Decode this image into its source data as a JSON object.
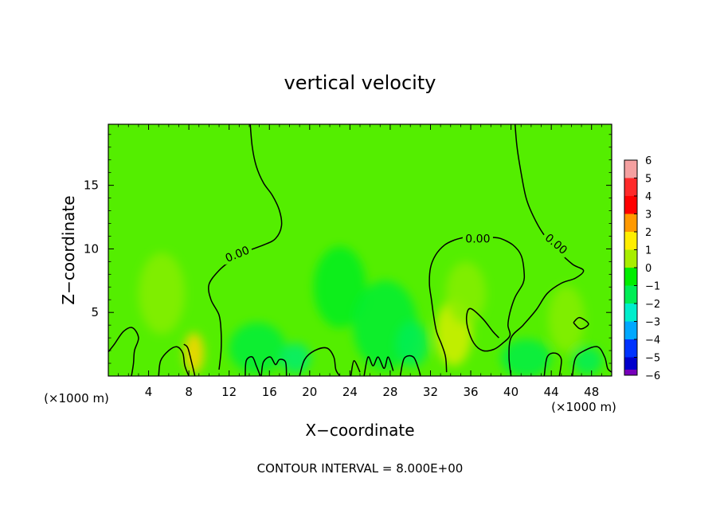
{
  "chart_data": {
    "type": "heatmap",
    "title": "vertical velocity",
    "xlabel": "X−coordinate",
    "ylabel": "Z−coordinate",
    "x_unit": "(×1000 m)",
    "x_unit_right": "(×1000 m)",
    "footer": "CONTOUR INTERVAL = 8.000E+00",
    "xlim": [
      0,
      50
    ],
    "ylim": [
      0,
      19.8
    ],
    "x_ticks": [
      4,
      8,
      12,
      16,
      20,
      24,
      28,
      32,
      36,
      40,
      44,
      48
    ],
    "x_tick_labels": [
      "4",
      "8",
      "12",
      "16",
      "20",
      "24",
      "28",
      "32",
      "36",
      "40",
      "44",
      "48"
    ],
    "y_ticks": [
      5,
      10,
      15
    ],
    "y_tick_labels": [
      "5",
      "10",
      "15"
    ],
    "background_value": 0.5,
    "colorbar": {
      "levels": [
        6,
        5,
        4,
        3,
        2,
        1,
        0,
        -1,
        -2,
        -3,
        -4,
        -5,
        -6
      ],
      "labels": [
        "6",
        "5",
        "4",
        "3",
        "2",
        "1",
        "0",
        "−1",
        "−2",
        "−3",
        "−4",
        "−5",
        "−6"
      ],
      "colors": [
        "#f4a0a0",
        "#ff2a2a",
        "#ff0000",
        "#ff9900",
        "#ffee00",
        "#a8ee00",
        "#00ee00",
        "#00ee55",
        "#00eecc",
        "#00a8ff",
        "#0033ff",
        "#0000cc",
        "#7700bb"
      ]
    },
    "contour_labels": [
      {
        "text": "0.00",
        "x": 12.8,
        "z": 9.6,
        "angle": -22
      },
      {
        "text": "0.00",
        "x": 36.7,
        "z": 10.8,
        "angle": 0
      },
      {
        "text": "0.00",
        "x": 44.5,
        "z": 10.4,
        "angle": 40
      }
    ],
    "contour_lines": [
      [
        [
          14.1,
          19.8
        ],
        [
          14.3,
          18
        ],
        [
          14.7,
          16.5
        ],
        [
          15.4,
          15.2
        ],
        [
          16.3,
          14.2
        ],
        [
          17,
          13
        ],
        [
          17.2,
          11.8
        ],
        [
          16.6,
          10.8
        ],
        [
          15.4,
          10.3
        ],
        [
          13.4,
          9.7
        ],
        [
          12.2,
          9.1
        ],
        [
          11,
          8.3
        ],
        [
          10,
          7.2
        ],
        [
          10.2,
          6
        ],
        [
          11,
          4.8
        ],
        [
          11.2,
          3.5
        ],
        [
          11.2,
          2
        ],
        [
          11,
          0.5
        ]
      ],
      [
        [
          40.4,
          19.8
        ],
        [
          40.6,
          18
        ],
        [
          41,
          16
        ],
        [
          41.5,
          14
        ],
        [
          42.2,
          12.6
        ],
        [
          43.2,
          11.2
        ],
        [
          44.6,
          9.9
        ],
        [
          46.1,
          8.8
        ],
        [
          47.2,
          8.3
        ],
        [
          46.4,
          7.7
        ],
        [
          45,
          7.3
        ],
        [
          43.6,
          6.5
        ],
        [
          42.5,
          5.2
        ],
        [
          41.2,
          4
        ],
        [
          40,
          3
        ],
        [
          39.8,
          1.5
        ],
        [
          40,
          0
        ]
      ],
      [
        [
          38.2,
          10.9
        ],
        [
          39,
          10.8
        ],
        [
          40.2,
          10.3
        ],
        [
          41,
          9.5
        ],
        [
          41.3,
          8.2
        ],
        [
          41.2,
          7.3
        ],
        [
          40.4,
          6.2
        ],
        [
          39.9,
          5
        ],
        [
          39.7,
          4
        ],
        [
          39.9,
          3.2
        ],
        [
          39.2,
          2.6
        ],
        [
          38.3,
          2.1
        ],
        [
          37.2,
          2
        ],
        [
          36.3,
          2.6
        ],
        [
          35.7,
          3.8
        ],
        [
          35.6,
          4.8
        ],
        [
          36,
          5.3
        ],
        [
          37.2,
          4.5
        ],
        [
          38.2,
          3.5
        ],
        [
          38.8,
          3
        ]
      ],
      [
        [
          35.3,
          10.9
        ],
        [
          34.4,
          10.7
        ],
        [
          33.4,
          10.3
        ],
        [
          32.5,
          9.5
        ],
        [
          32,
          8.5
        ],
        [
          31.9,
          7.2
        ],
        [
          32.1,
          6
        ],
        [
          32.3,
          4.8
        ],
        [
          32.6,
          3.5
        ],
        [
          33.1,
          2.5
        ],
        [
          33.5,
          1.5
        ],
        [
          33.6,
          0.3
        ]
      ],
      [
        [
          0,
          1.9
        ],
        [
          0.6,
          2.5
        ],
        [
          1.5,
          3.5
        ],
        [
          2.4,
          3.8
        ],
        [
          3,
          3
        ],
        [
          2.6,
          2
        ],
        [
          2.5,
          1
        ],
        [
          2.3,
          0
        ]
      ],
      [
        [
          5,
          0
        ],
        [
          5.2,
          1.2
        ],
        [
          6,
          2
        ],
        [
          6.8,
          2.3
        ],
        [
          7.4,
          1.8
        ],
        [
          7.6,
          0.8
        ],
        [
          8,
          0
        ]
      ],
      [
        [
          8.6,
          0
        ],
        [
          8.3,
          1
        ],
        [
          7.9,
          2.2
        ],
        [
          7.5,
          2.5
        ]
      ],
      [
        [
          13.6,
          0
        ],
        [
          13.7,
          1.2
        ],
        [
          14.3,
          1.5
        ],
        [
          14.7,
          0.8
        ],
        [
          15.1,
          0
        ]
      ],
      [
        [
          15.2,
          0
        ],
        [
          15.4,
          1.1
        ],
        [
          16.1,
          1.5
        ],
        [
          16.6,
          0.9
        ],
        [
          17,
          1.3
        ],
        [
          17.6,
          1.1
        ],
        [
          17.7,
          0
        ]
      ],
      [
        [
          19,
          0
        ],
        [
          19.5,
          1.3
        ],
        [
          20.5,
          2
        ],
        [
          21.7,
          2.2
        ],
        [
          22.4,
          1.5
        ],
        [
          22.6,
          0.5
        ],
        [
          23,
          0
        ]
      ],
      [
        [
          24.1,
          0
        ],
        [
          24.4,
          1.2
        ],
        [
          25,
          0.3
        ]
      ],
      [
        [
          25.4,
          0
        ],
        [
          25.8,
          1.5
        ],
        [
          26.3,
          0.8
        ],
        [
          26.8,
          1.5
        ],
        [
          27.4,
          0.6
        ],
        [
          27.8,
          1.5
        ],
        [
          28.3,
          0.4
        ]
      ],
      [
        [
          29,
          0
        ],
        [
          29.4,
          1.4
        ],
        [
          30.3,
          1.5
        ],
        [
          30.8,
          0.6
        ],
        [
          31,
          0
        ]
      ],
      [
        [
          43.3,
          0
        ],
        [
          43.6,
          1.5
        ],
        [
          44.4,
          1.8
        ],
        [
          45,
          1.3
        ],
        [
          44.8,
          0
        ]
      ],
      [
        [
          46.1,
          0
        ],
        [
          46.4,
          1.4
        ],
        [
          47.3,
          2
        ],
        [
          48.6,
          2.3
        ],
        [
          49.3,
          1.5
        ],
        [
          49.6,
          0.6
        ],
        [
          50,
          0.3
        ]
      ],
      [
        [
          46.2,
          4.2
        ],
        [
          46.8,
          4.6
        ],
        [
          47.7,
          4.1
        ],
        [
          46.9,
          3.7
        ],
        [
          46.2,
          4.2
        ]
      ]
    ],
    "anomaly_blobs": [
      {
        "x": 5.3,
        "z": 6.5,
        "rx": 2.3,
        "rz": 3.2,
        "value": 0.8
      },
      {
        "x": 8.5,
        "z": 1.8,
        "rx": 1.0,
        "rz": 1.6,
        "value": 2.3
      },
      {
        "x": 14.8,
        "z": 2.2,
        "rx": 2.8,
        "rz": 2.0,
        "value": -0.7
      },
      {
        "x": 18.6,
        "z": 1.4,
        "rx": 1.5,
        "rz": 1.2,
        "value": -1.2
      },
      {
        "x": 23.0,
        "z": 7.0,
        "rx": 2.6,
        "rz": 3.2,
        "value": -0.4
      },
      {
        "x": 27.5,
        "z": 4.0,
        "rx": 3.2,
        "rz": 3.5,
        "value": -0.6
      },
      {
        "x": 30.2,
        "z": 2.5,
        "rx": 1.6,
        "rz": 1.8,
        "value": -1.0
      },
      {
        "x": 34.3,
        "z": 3.4,
        "rx": 1.8,
        "rz": 2.6,
        "value": 1.5
      },
      {
        "x": 35.5,
        "z": 6.5,
        "rx": 2.0,
        "rz": 2.5,
        "value": 0.8
      },
      {
        "x": 41.5,
        "z": 1.4,
        "rx": 2.5,
        "rz": 1.5,
        "value": -0.8
      },
      {
        "x": 45.5,
        "z": 4.5,
        "rx": 1.8,
        "rz": 2.6,
        "value": 0.8
      },
      {
        "x": 47.6,
        "z": 1.2,
        "rx": 1.5,
        "rz": 1.1,
        "value": -1.0
      }
    ]
  }
}
